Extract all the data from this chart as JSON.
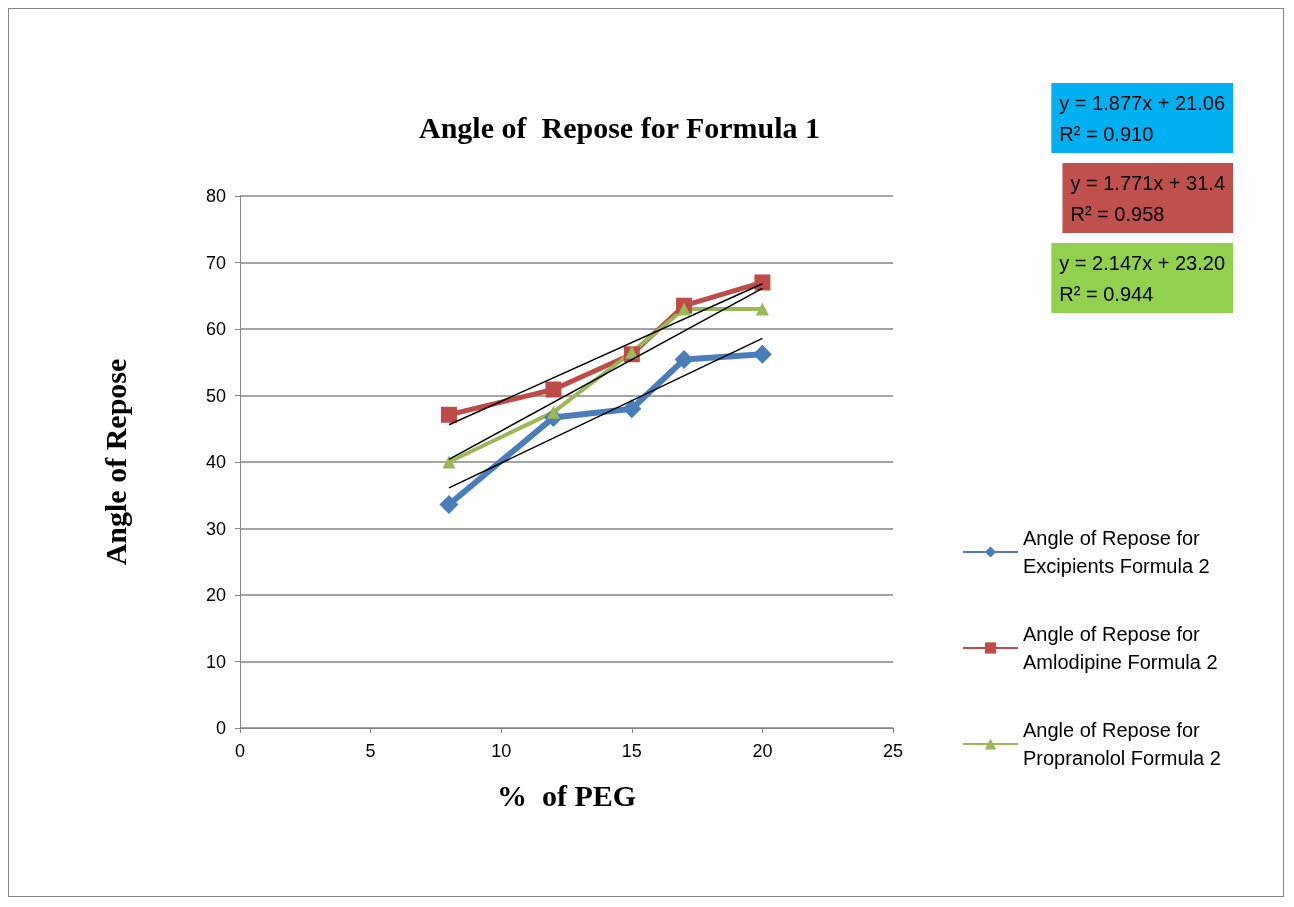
{
  "chart_data": {
    "type": "line",
    "title": "Angle of  Repose for Formula 1",
    "xlabel": "%  of PEG",
    "ylabel": "Angle of Repose",
    "xlim": [
      0,
      25
    ],
    "xticks": [
      0,
      5,
      10,
      15,
      20,
      25
    ],
    "ylim": [
      0,
      80
    ],
    "yticks": [
      0,
      10,
      20,
      30,
      40,
      50,
      60,
      70,
      80
    ],
    "grid": "y",
    "legend": "right",
    "annotations": [
      "y = 1.877x + 21.06\nR² = 0.910",
      "y = 1.771x + 31.4\nR² = 0.958",
      "y = 2.147x + 23.20\nR² = 0.944"
    ],
    "series": [
      {
        "name": "Angle of Repose for Excipients Formula 2",
        "color": "#4a7ebb",
        "marker": "diamond",
        "x": [
          8,
          12,
          15,
          17,
          20
        ],
        "values": [
          33.6,
          46.7,
          48.0,
          55.4,
          56.2
        ]
      },
      {
        "name": "Angle of Repose for Amlodipine Formula 2",
        "color": "#be4b48",
        "marker": "square",
        "x": [
          8,
          12,
          15,
          17,
          20
        ],
        "values": [
          47.1,
          50.9,
          56.2,
          63.5,
          67.0
        ]
      },
      {
        "name": "Angle of Repose for Propranolol Formula 2",
        "color": "#98b954",
        "marker": "triangle",
        "x": [
          8,
          12,
          15,
          17,
          20
        ],
        "values": [
          40.0,
          47.5,
          56.5,
          63.0,
          63.0
        ]
      },
      {
        "type": "line",
        "color": "#000000",
        "marker": "none",
        "x": [
          8,
          20
        ],
        "values": [
          36.1,
          58.6
        ]
      },
      {
        "type": "line",
        "color": "#000000",
        "marker": "none",
        "x": [
          8,
          20
        ],
        "values": [
          45.6,
          66.8
        ]
      },
      {
        "type": "line",
        "color": "#000000",
        "marker": "none",
        "x": [
          8,
          20
        ],
        "values": [
          40.4,
          66.1
        ]
      }
    ]
  }
}
